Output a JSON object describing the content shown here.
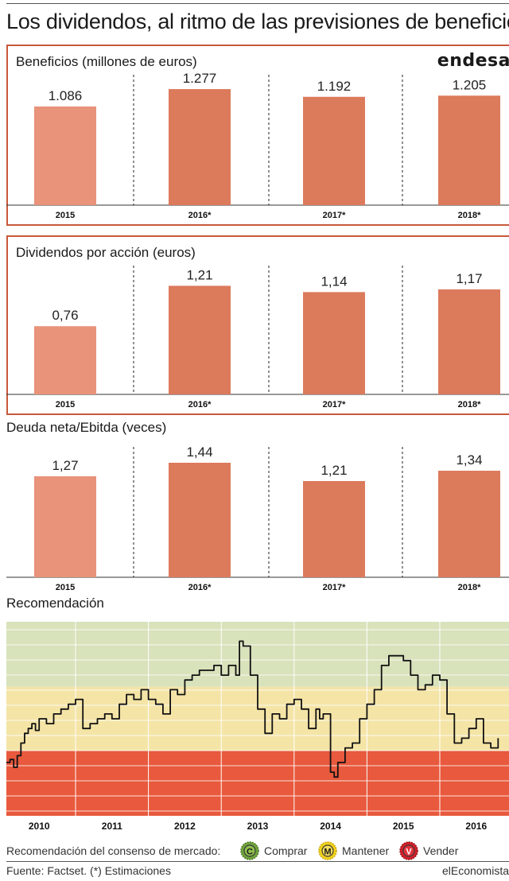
{
  "title": "Los dividendos, al ritmo de las previsiones de beneficio",
  "logo": "endesa",
  "chart_data": [
    {
      "type": "bar",
      "title": "Beneficios (millones de euros)",
      "categories": [
        "2015",
        "2016*",
        "2017*",
        "2018*"
      ],
      "values": [
        1086,
        1277,
        1192,
        1205
      ],
      "labels": [
        "1.086",
        "1.277",
        "1.192",
        "1.205"
      ],
      "ylim": [
        0,
        1400
      ]
    },
    {
      "type": "bar",
      "title": "Dividendos por acción (euros)",
      "categories": [
        "2015",
        "2016*",
        "2017*",
        "2018*"
      ],
      "values": [
        0.76,
        1.21,
        1.14,
        1.17
      ],
      "labels": [
        "0,76",
        "1,21",
        "1,14",
        "1,17"
      ],
      "ylim": [
        0,
        1.4
      ]
    },
    {
      "type": "bar",
      "title": "Deuda neta/Ebitda (veces)",
      "categories": [
        "2015",
        "2016*",
        "2017*",
        "2018*"
      ],
      "values": [
        1.27,
        1.44,
        1.21,
        1.34
      ],
      "labels": [
        "1,27",
        "1,44",
        "1,21",
        "1,34"
      ],
      "ylim": [
        0,
        1.6
      ]
    },
    {
      "type": "line",
      "title": "Recomendación",
      "x_ticks": [
        "2010",
        "2011",
        "2012",
        "2013",
        "2014",
        "2015",
        "2016"
      ],
      "x": [
        2009.55,
        2009.6,
        2009.65,
        2009.7,
        2009.75,
        2009.8,
        2009.85,
        2009.9,
        2009.95,
        2010.0,
        2010.1,
        2010.2,
        2010.3,
        2010.4,
        2010.5,
        2010.6,
        2010.7,
        2010.8,
        2010.9,
        2011.0,
        2011.1,
        2011.2,
        2011.3,
        2011.4,
        2011.5,
        2011.6,
        2011.7,
        2011.8,
        2011.9,
        2012.0,
        2012.1,
        2012.2,
        2012.3,
        2012.4,
        2012.5,
        2012.6,
        2012.7,
        2012.75,
        2012.8,
        2012.9,
        2013.0,
        2013.1,
        2013.2,
        2013.3,
        2013.4,
        2013.5,
        2013.6,
        2013.7,
        2013.8,
        2013.85,
        2013.9,
        2014.0,
        2014.05,
        2014.1,
        2014.2,
        2014.3,
        2014.4,
        2014.5,
        2014.6,
        2014.7,
        2014.8,
        2014.9,
        2015.0,
        2015.1,
        2015.2,
        2015.3,
        2015.4,
        2015.5,
        2015.6,
        2015.7,
        2015.8,
        2015.9,
        2016.0,
        2016.1,
        2016.2,
        2016.3
      ],
      "y": [
        2.45,
        2.42,
        2.5,
        2.38,
        2.25,
        2.15,
        2.1,
        2.05,
        2.12,
        2.0,
        2.05,
        1.95,
        1.9,
        1.85,
        1.8,
        2.1,
        2.05,
        2.0,
        1.95,
        2.0,
        1.85,
        1.75,
        1.8,
        1.7,
        1.8,
        1.85,
        1.95,
        1.7,
        1.75,
        1.6,
        1.55,
        1.5,
        1.5,
        1.45,
        1.55,
        1.45,
        1.55,
        1.2,
        1.25,
        1.55,
        1.9,
        2.15,
        1.95,
        2.0,
        1.85,
        1.8,
        1.9,
        2.1,
        1.9,
        2.0,
        1.95,
        2.55,
        2.6,
        2.45,
        2.3,
        2.25,
        2.0,
        1.85,
        1.7,
        1.45,
        1.35,
        1.35,
        1.4,
        1.55,
        1.7,
        1.65,
        1.55,
        1.6,
        1.95,
        2.25,
        2.2,
        2.1,
        2.0,
        2.25,
        2.3,
        2.2
      ],
      "ylim": [
        1,
        3
      ],
      "zones": [
        {
          "from": 1.0,
          "to": 1.67,
          "color": "#d8e2bb"
        },
        {
          "from": 1.67,
          "to": 2.33,
          "color": "#f4e4a6"
        },
        {
          "from": 2.33,
          "to": 3.0,
          "color": "#e8593d"
        }
      ]
    }
  ],
  "legend": {
    "label": "Recomendación del consenso de mercado:",
    "items": [
      {
        "letter": "C",
        "text": "Comprar",
        "color": "#6fa23c"
      },
      {
        "letter": "M",
        "text": "Mantener",
        "color": "#f2d21a"
      },
      {
        "letter": "V",
        "text": "Vender",
        "color": "#d21f2a"
      }
    ]
  },
  "colors": {
    "bar_first": "#e8937a",
    "bar": "#dc7a5c",
    "frame": "#c8593a"
  },
  "footer": {
    "source": "Fuente: Factset. (*) Estimaciones",
    "brand": "elEconomista"
  }
}
